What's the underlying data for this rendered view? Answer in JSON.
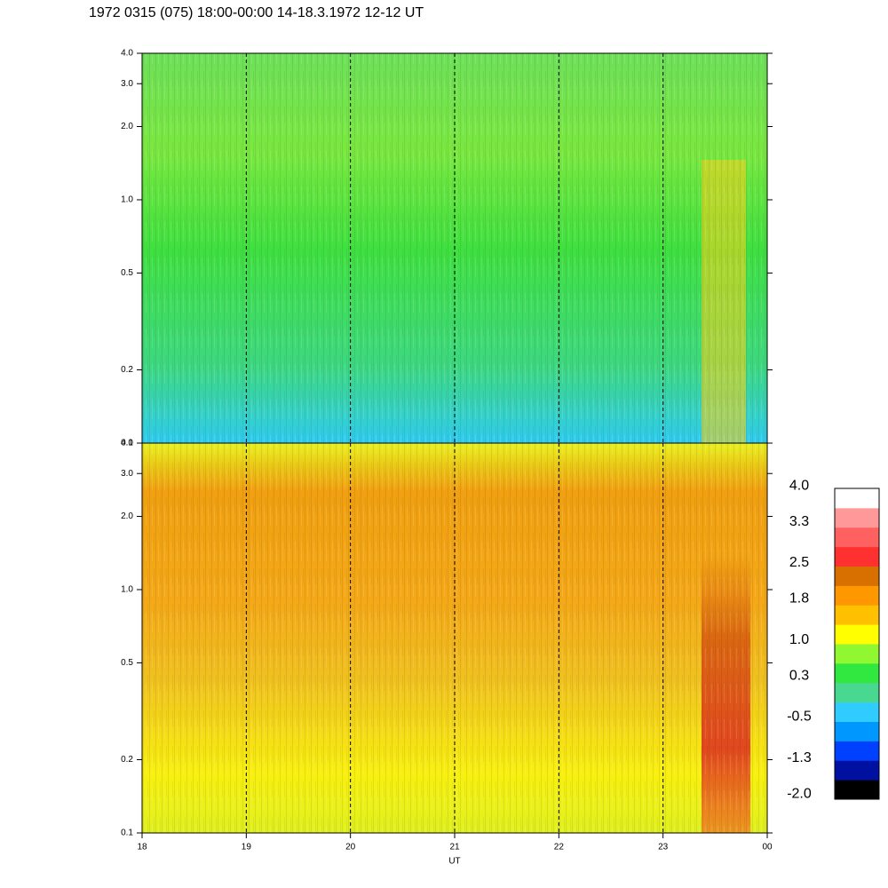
{
  "chart_data": {
    "type": "spectrogram",
    "title": "1972 0315 (075) 18:00-00:00 14-18.3.1972  12-12 UT",
    "xlabel": "UT",
    "xlim": [
      18,
      24
    ],
    "xticks": [
      18,
      19,
      20,
      21,
      22,
      23,
      {
        "value": 24,
        "label": "00"
      }
    ],
    "ylim": [
      0.1,
      4
    ],
    "yticks": [
      0.1,
      0.2,
      0.5,
      {
        "value": 1,
        "label": "1.0"
      },
      {
        "value": 2,
        "label": "2.0"
      },
      {
        "value": 3,
        "label": "3.0"
      },
      {
        "value": 4,
        "label": "4.0"
      }
    ],
    "log_y": true,
    "grid_x": true,
    "colorbar": {
      "clim": [
        -2.1,
        3.95
      ],
      "ticks": [
        {
          "value": 4,
          "label": "4.0"
        },
        3.3,
        2.5,
        1.8,
        {
          "value": 1,
          "label": "1.0"
        },
        0.3,
        -0.5,
        -1.3,
        {
          "value": -2,
          "label": "-2.0"
        }
      ],
      "colors": [
        "#000000",
        "#0010a0",
        "#0040ff",
        "#0098ff",
        "#30ccff",
        "#48d890",
        "#30e840",
        "#90f830",
        "#ffff00",
        "#ffc000",
        "#ff9800",
        "#d87000",
        "#ff3030",
        "#ff6060",
        "#ff9898",
        "#ffffff"
      ]
    }
  }
}
